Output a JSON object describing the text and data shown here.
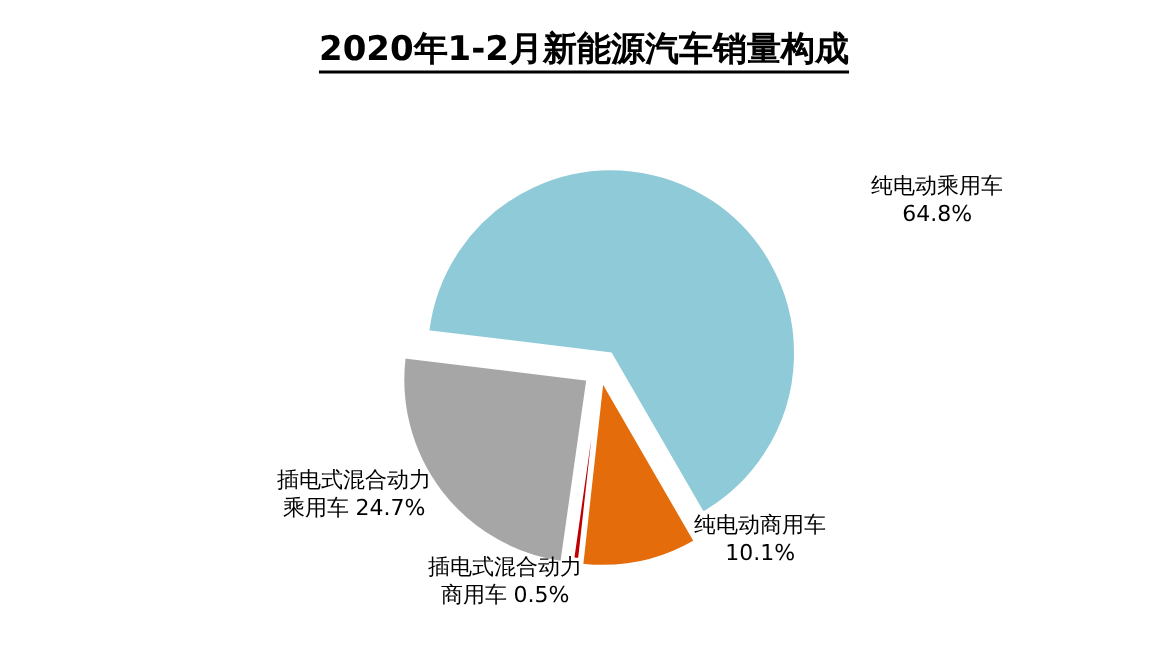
{
  "chart_data": {
    "type": "pie",
    "title": "2020年1-2月新能源汽车销量构成",
    "categories": [
      "纯电动乘用车",
      "纯电动商用车",
      "插电式混合动力商用车",
      "插电式混合动力乘用车"
    ],
    "values": [
      64.8,
      10.1,
      0.5,
      24.7
    ],
    "colors": [
      "#8ecad8",
      "#e46c0a",
      "#c00000",
      "#a6a6a6"
    ],
    "value_labels": [
      "64.8%",
      "10.1%",
      "0.5%",
      "24.7%"
    ]
  }
}
